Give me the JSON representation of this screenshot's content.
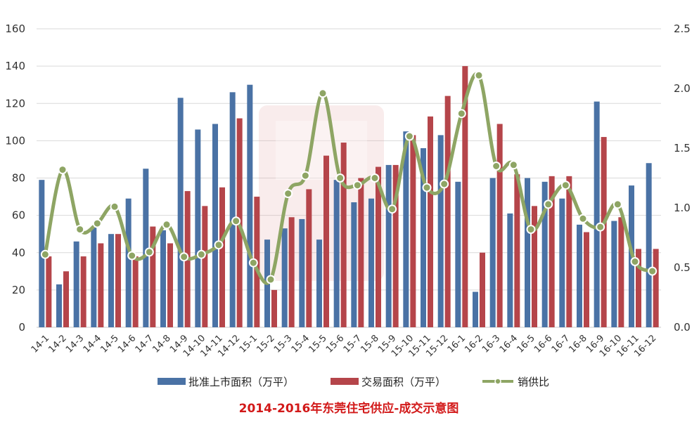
{
  "chart_data": {
    "type": "bar",
    "title": "2014-2016年东莞住宅供应-成交示意图",
    "categories": [
      "14-1",
      "14-2",
      "14-3",
      "14-4",
      "14-5",
      "14-6",
      "14-7",
      "14-8",
      "14-9",
      "14-10",
      "14-11",
      "14-12",
      "15-1",
      "15-2",
      "15-3",
      "15-4",
      "15-5",
      "15-6",
      "15-7",
      "15-8",
      "15-9",
      "15-10",
      "15-11",
      "15-12",
      "16-1",
      "16-2",
      "16-3",
      "16-4",
      "16-5",
      "16-6",
      "16-7",
      "16-8",
      "16-9",
      "16-10",
      "16-11",
      "16-12"
    ],
    "series": [
      {
        "name": "批准上市面积（万平）",
        "type": "bar",
        "axis": "left",
        "color": "#4a72a5",
        "values": [
          79,
          23,
          46,
          54,
          50,
          69,
          85,
          52,
          123,
          106,
          109,
          126,
          130,
          47,
          53,
          58,
          47,
          79,
          67,
          69,
          87,
          105,
          96,
          103,
          78,
          19,
          80,
          61,
          80,
          78,
          69,
          55,
          121,
          57,
          76,
          88
        ]
      },
      {
        "name": "交易面积（万平）",
        "type": "bar",
        "axis": "left",
        "color": "#b5454a",
        "values": [
          38,
          30,
          38,
          45,
          50,
          38,
          54,
          45,
          73,
          65,
          75,
          112,
          70,
          20,
          59,
          74,
          92,
          99,
          80,
          86,
          87,
          103,
          113,
          124,
          140,
          40,
          109,
          82,
          65,
          81,
          81,
          51,
          102,
          59,
          42,
          42
        ]
      },
      {
        "name": "销供比",
        "type": "line",
        "axis": "right",
        "color": "#8ea564",
        "values": [
          0.61,
          1.32,
          0.82,
          0.87,
          1.01,
          0.6,
          0.63,
          0.86,
          0.59,
          0.61,
          0.69,
          0.89,
          0.54,
          0.4,
          1.12,
          1.27,
          1.96,
          1.25,
          1.19,
          1.25,
          0.99,
          1.6,
          1.17,
          1.2,
          1.79,
          2.11,
          1.35,
          1.36,
          0.82,
          1.03,
          1.19,
          0.91,
          0.84,
          1.03,
          0.55,
          0.47
        ]
      }
    ],
    "y_left": {
      "ylim": [
        0,
        160
      ],
      "ticks": [
        0,
        20,
        40,
        60,
        80,
        100,
        120,
        140,
        160
      ]
    },
    "y_right": {
      "ylim": [
        0,
        2.5
      ],
      "ticks": [
        "0.0",
        "0.5",
        "1.0",
        "1.5",
        "2.0",
        "2.5"
      ]
    },
    "grid": true,
    "legend_position": "bottom"
  }
}
